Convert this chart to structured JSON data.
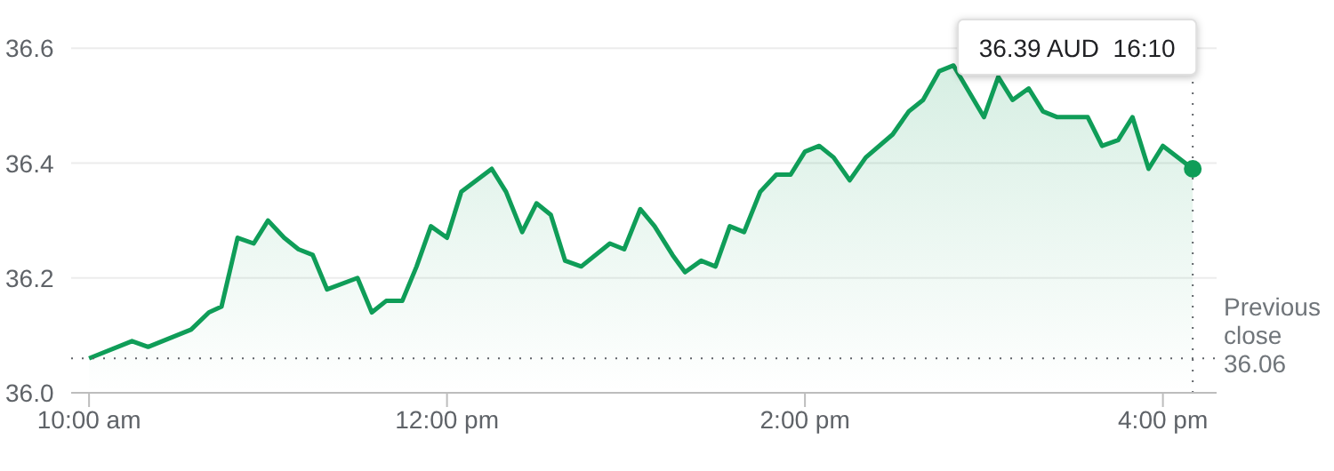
{
  "chart_data": {
    "type": "area",
    "x": [
      10.0,
      10.24,
      10.33,
      10.57,
      10.67,
      10.74,
      10.83,
      10.92,
      11.0,
      11.09,
      11.17,
      11.25,
      11.33,
      11.5,
      11.58,
      11.66,
      11.75,
      11.83,
      11.91,
      12.0,
      12.08,
      12.25,
      12.33,
      12.42,
      12.5,
      12.58,
      12.66,
      12.75,
      12.91,
      12.99,
      13.08,
      13.16,
      13.26,
      13.33,
      13.42,
      13.5,
      13.58,
      13.66,
      13.75,
      13.84,
      13.92,
      14.0,
      14.08,
      14.16,
      14.25,
      14.34,
      14.49,
      14.58,
      14.66,
      14.75,
      14.83,
      15.0,
      15.08,
      15.16,
      15.25,
      15.33,
      15.41,
      15.58,
      15.66,
      15.75,
      15.83,
      15.92,
      16.0,
      16.1667
    ],
    "series": [
      {
        "color": "#0f9d58",
        "values": [
          36.06,
          36.09,
          36.08,
          36.11,
          36.14,
          36.15,
          36.27,
          36.26,
          36.3,
          36.27,
          36.25,
          36.24,
          36.18,
          36.2,
          36.14,
          36.16,
          36.16,
          36.22,
          36.29,
          36.27,
          36.35,
          36.39,
          36.35,
          36.28,
          36.33,
          36.31,
          36.23,
          36.22,
          36.26,
          36.25,
          36.32,
          36.29,
          36.24,
          36.21,
          36.23,
          36.22,
          36.29,
          36.28,
          36.35,
          36.38,
          36.38,
          36.42,
          36.43,
          36.41,
          36.37,
          36.41,
          36.45,
          36.49,
          36.51,
          36.56,
          36.57,
          36.48,
          36.55,
          36.51,
          36.53,
          36.49,
          36.48,
          36.48,
          36.43,
          36.44,
          36.48,
          36.39,
          36.43,
          36.39
        ]
      }
    ],
    "xlim": [
      9.9,
      16.3
    ],
    "xticks": [
      {
        "value": 10,
        "label": "10:00 am"
      },
      {
        "value": 12,
        "label": "12:00 pm"
      },
      {
        "value": 14,
        "label": "2:00 pm"
      },
      {
        "value": 16,
        "label": "4:00 pm"
      }
    ],
    "ylim": [
      36.0,
      36.65
    ],
    "yticks": [
      {
        "value": 36.0,
        "label": "36.0"
      },
      {
        "value": 36.2,
        "label": "36.2"
      },
      {
        "value": 36.4,
        "label": "36.4"
      },
      {
        "value": 36.6,
        "label": "36.6"
      }
    ],
    "grid": "y",
    "marker": "none",
    "line_style": "solid",
    "ref_lines": [
      {
        "axis": "y",
        "value": 36.06,
        "label": "Previous close 36.06",
        "color": "#5f6368",
        "line_style": "dotted"
      },
      {
        "axis": "x",
        "value": 16.1667,
        "label": "36.39 AUD  16:10",
        "color": "#5f6368",
        "line_style": "dotted"
      }
    ]
  }
}
